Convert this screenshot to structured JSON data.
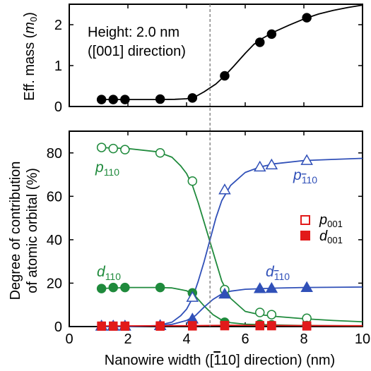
{
  "colors": {
    "green": "#1f8a3c",
    "blue": "#3050b8",
    "red": "#e21a1a",
    "black": "#000000",
    "vline": "#777777"
  },
  "top_panel": {
    "ylabel_main": "Eff. mass (",
    "ylabel_sym": "m",
    "ylabel_sub": "0",
    "ylabel_close": ")",
    "annotation_line1": "Height: 2.0 nm",
    "annotation_line2": "([001] direction)"
  },
  "bottom_panel": {
    "ylabel_line1": "Degree of contribution",
    "ylabel_line2": "of atomic orbital (%)",
    "label_p110": "p",
    "label_p110_sub": "110",
    "label_d110": "d",
    "label_d110_sub": "110",
    "label_p1b10": "p",
    "label_d1b10": "d",
    "label_1b10_sub_a": "1",
    "label_1b10_sub_b": "10",
    "legend_p001": "p",
    "legend_d001": "d",
    "legend_001_sub": "001"
  },
  "xlabel_pre": "Nanowire width ([",
  "xlabel_bar1": "1",
  "xlabel_mid": "10] direction) (nm)",
  "chart_data": [
    {
      "type": "line",
      "panel": "top",
      "ylabel": "Eff. mass (m0)",
      "xlim": [
        0,
        10
      ],
      "ylim": [
        0,
        2.5
      ],
      "x_ticks": [
        0,
        2,
        4,
        6,
        8,
        10
      ],
      "y_ticks": [
        0,
        1,
        2
      ],
      "annotation": "Height: 2.0 nm ([001] direction)",
      "series": [
        {
          "marker": "filled-circle",
          "color": "#000000",
          "x": [
            1.1,
            1.5,
            1.9,
            3.1,
            4.2,
            5.3,
            6.5,
            6.9,
            8.1
          ],
          "y": [
            0.17,
            0.17,
            0.17,
            0.18,
            0.21,
            0.75,
            1.57,
            1.77,
            2.17
          ]
        }
      ],
      "fit": {
        "color": "#000000",
        "x": [
          1.0,
          2.0,
          3.0,
          3.6,
          4.0,
          4.3,
          4.6,
          5.0,
          5.3,
          5.6,
          6.0,
          6.3,
          6.6,
          7.0,
          7.5,
          8.0,
          8.5,
          9.0,
          9.5,
          10.0
        ],
        "y": [
          0.17,
          0.17,
          0.17,
          0.175,
          0.19,
          0.24,
          0.36,
          0.55,
          0.75,
          0.98,
          1.3,
          1.52,
          1.67,
          1.83,
          1.99,
          2.14,
          2.26,
          2.35,
          2.42,
          2.48
        ]
      }
    },
    {
      "type": "line",
      "panel": "bottom",
      "xlabel": "Nanowire width ([1̄10] direction) (nm)",
      "ylabel": "Degree of contribution of atomic orbital (%)",
      "xlim": [
        0,
        10
      ],
      "ylim": [
        0,
        90
      ],
      "x_ticks": [
        0,
        2,
        4,
        6,
        8,
        10
      ],
      "y_ticks": [
        0,
        20,
        40,
        60,
        80
      ],
      "vertical_line_x": 4.8,
      "legend": [
        "p001",
        "d001"
      ],
      "legend_position": "right",
      "series": [
        {
          "name": "p110",
          "marker": "open-circle",
          "color": "#1f8a3c",
          "x": [
            1.1,
            1.5,
            1.9,
            3.1,
            4.2,
            5.3,
            6.5,
            6.9,
            8.1
          ],
          "y": [
            82.5,
            82,
            81.5,
            80,
            67,
            17,
            6.5,
            5.5,
            3.8
          ]
        },
        {
          "name": "d110",
          "marker": "filled-circle",
          "color": "#1f8a3c",
          "x": [
            1.1,
            1.5,
            1.9,
            3.1,
            4.2,
            5.3,
            6.5,
            6.9,
            8.1
          ],
          "y": [
            17.5,
            18,
            18,
            18,
            15.5,
            2,
            1,
            0.8,
            0.5
          ]
        },
        {
          "name": "p1̄10",
          "marker": "open-triangle",
          "color": "#3050b8",
          "x": [
            1.1,
            1.5,
            1.9,
            3.1,
            4.2,
            5.3,
            6.5,
            6.9,
            8.1
          ],
          "y": [
            0.3,
            0.3,
            0.3,
            0.5,
            13.5,
            63,
            73.5,
            74.5,
            76.5
          ]
        },
        {
          "name": "d1̄10",
          "marker": "filled-triangle",
          "color": "#3050b8",
          "x": [
            1.1,
            1.5,
            1.9,
            3.1,
            4.2,
            5.3,
            6.5,
            6.9,
            8.1
          ],
          "y": [
            0.2,
            0.2,
            0.2,
            0.5,
            3.5,
            15,
            17.5,
            17.6,
            18
          ]
        },
        {
          "name": "p001",
          "marker": "open-square",
          "color": "#e21a1a",
          "x": [
            1.1,
            1.5,
            1.9,
            3.1,
            4.2,
            5.3,
            6.5,
            6.9,
            8.1
          ],
          "y": [
            0.3,
            0.3,
            0.3,
            0.4,
            0.5,
            0.6,
            0.5,
            0.5,
            0.4
          ]
        },
        {
          "name": "d001",
          "marker": "filled-square",
          "color": "#e21a1a",
          "x": [
            1.1,
            1.5,
            1.9,
            3.1,
            4.2,
            5.3,
            6.5,
            6.9,
            8.1
          ],
          "y": [
            0.1,
            0.1,
            0.1,
            0.1,
            0.2,
            0.3,
            0.3,
            0.3,
            0.2
          ]
        }
      ],
      "fits": [
        {
          "color": "#1f8a3c",
          "x": [
            1.0,
            2.0,
            3.0,
            3.5,
            3.8,
            4.0,
            4.2,
            4.4,
            4.6,
            4.8,
            5.0,
            5.2,
            5.5,
            6.0,
            6.5,
            7.0,
            8.0,
            9.0,
            10.0
          ],
          "y": [
            82.5,
            82,
            80.5,
            78,
            74,
            70.5,
            65,
            57,
            48,
            39,
            30,
            21,
            13,
            7,
            5.5,
            4.7,
            3.6,
            2.8,
            2.2
          ]
        },
        {
          "color": "#1f8a3c",
          "x": [
            1.0,
            2.0,
            3.0,
            3.5,
            4.0,
            4.3,
            4.6,
            4.9,
            5.2,
            5.5,
            6.0,
            7.0,
            8.0,
            10.0
          ],
          "y": [
            17.5,
            18,
            18,
            17.8,
            16.5,
            14,
            9.5,
            5.5,
            3,
            1.8,
            1.1,
            0.7,
            0.5,
            0.3
          ]
        },
        {
          "color": "#3050b8",
          "x": [
            1.0,
            2.0,
            3.0,
            3.5,
            3.8,
            4.0,
            4.2,
            4.4,
            4.6,
            4.8,
            5.0,
            5.2,
            5.5,
            6.0,
            6.5,
            7.0,
            8.0,
            9.0,
            10.0
          ],
          "y": [
            0,
            0,
            0.5,
            2,
            5,
            8,
            13,
            21,
            30,
            40,
            50,
            58,
            65,
            71,
            73.5,
            75,
            76.5,
            77,
            77.5
          ]
        },
        {
          "color": "#3050b8",
          "x": [
            1.0,
            2.0,
            3.0,
            3.5,
            4.0,
            4.3,
            4.6,
            4.9,
            5.2,
            5.5,
            6.0,
            7.0,
            8.0,
            10.0
          ],
          "y": [
            0,
            0,
            0.4,
            1,
            2.8,
            5,
            9,
            12.5,
            15,
            16.3,
            17.2,
            17.7,
            18,
            18.2
          ]
        },
        {
          "color": "#e21a1a",
          "x": [
            1.0,
            4.0,
            5.5,
            7.0,
            10.0
          ],
          "y": [
            0.3,
            0.4,
            0.6,
            0.5,
            0.4
          ]
        }
      ]
    }
  ]
}
